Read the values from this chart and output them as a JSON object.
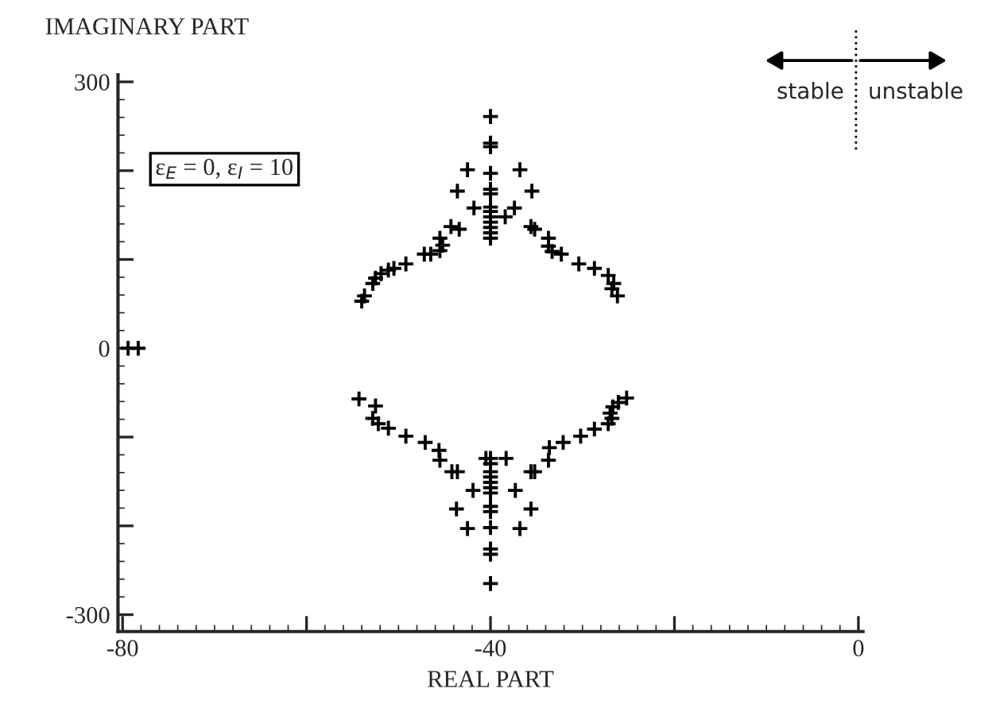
{
  "chart_data": {
    "type": "scatter",
    "xlabel": "REAL PART",
    "ylabel": "IMAGINARY PART",
    "marker": "cross",
    "grid": false,
    "legend": false,
    "xlim": [
      -80.5,
      0.5
    ],
    "ylim": [
      -319,
      308
    ],
    "xticks": [
      -80,
      {
        "value": -60,
        "label": null
      },
      -40,
      {
        "value": -20,
        "label": null
      },
      0
    ],
    "yticks": [
      -300,
      {
        "value": -200,
        "label": null
      },
      {
        "value": -100,
        "label": null
      },
      0,
      {
        "value": 100,
        "label": null
      },
      {
        "value": 200,
        "label": null
      },
      300
    ],
    "annotations": [
      "ε$_{E}$ = 0, ε$_{I}$ = 10",
      "stable",
      "unstable"
    ],
    "series": [
      {
        "color": "#000000",
        "x": [
          -79.4,
          -78.3,
          -40,
          -40,
          -40,
          -40,
          -40,
          -40,
          -40,
          -40,
          -40,
          -40,
          -40,
          -40,
          -40,
          -42.5,
          -43.6,
          -41.8,
          -44.3,
          -43.4,
          -45.5,
          -45.2,
          -45.5,
          -47.2,
          -46.5,
          -49.2,
          -50.5,
          -51.1,
          -51.9,
          -52.5,
          -52.8,
          -53.7,
          -54.0,
          -36.8,
          -35.5,
          -37.4,
          -38.4,
          -35.6,
          -35.2,
          -33.7,
          -33.7,
          -33.3,
          -32.3,
          -30.4,
          -28.7,
          -27.2,
          -26.6,
          -26.8,
          -26.2,
          -40,
          -40,
          -40,
          -40,
          -40,
          -40,
          -40,
          -40,
          -40,
          -40,
          -40,
          -40,
          -40,
          -54.3,
          -52.5,
          -52.8,
          -52.2,
          -51.1,
          -49.2,
          -47.1,
          -45.6,
          -45.5,
          -44.2,
          -43.6,
          -41.9,
          -43.7,
          -42.5,
          -40.5,
          -25.2,
          -26.1,
          -26.7,
          -27.0,
          -26.8,
          -27.2,
          -28.7,
          -30.2,
          -32.1,
          -33.6,
          -33.7,
          -35.6,
          -35.2,
          -37.3,
          -35.6,
          -36.8,
          -38.3
        ],
        "values": [
          0,
          0,
          261,
          231,
          227,
          197,
          179,
          174,
          159,
          154,
          148,
          142,
          136,
          130,
          124,
          201,
          177,
          158,
          137,
          134,
          124,
          116,
          110,
          106,
          106,
          95,
          90,
          88,
          84,
          79,
          73,
          59,
          53,
          201,
          177,
          158,
          148,
          137,
          134,
          124,
          115,
          109,
          106,
          95,
          90,
          82,
          73,
          67,
          59,
          -124,
          -130,
          -139,
          -145,
          -151,
          -157,
          -163,
          -178,
          -184,
          -202,
          -226,
          -232,
          -265,
          -57,
          -65,
          -79,
          -85,
          -90,
          -99,
          -106,
          -115,
          -126,
          -139,
          -139,
          -160,
          -181,
          -203,
          -124,
          -56,
          -61,
          -66,
          -73,
          -79,
          -85,
          -91,
          -99,
          -106,
          -112,
          -126,
          -139,
          -139,
          -160,
          -181,
          -203,
          -124
        ]
      }
    ]
  }
}
